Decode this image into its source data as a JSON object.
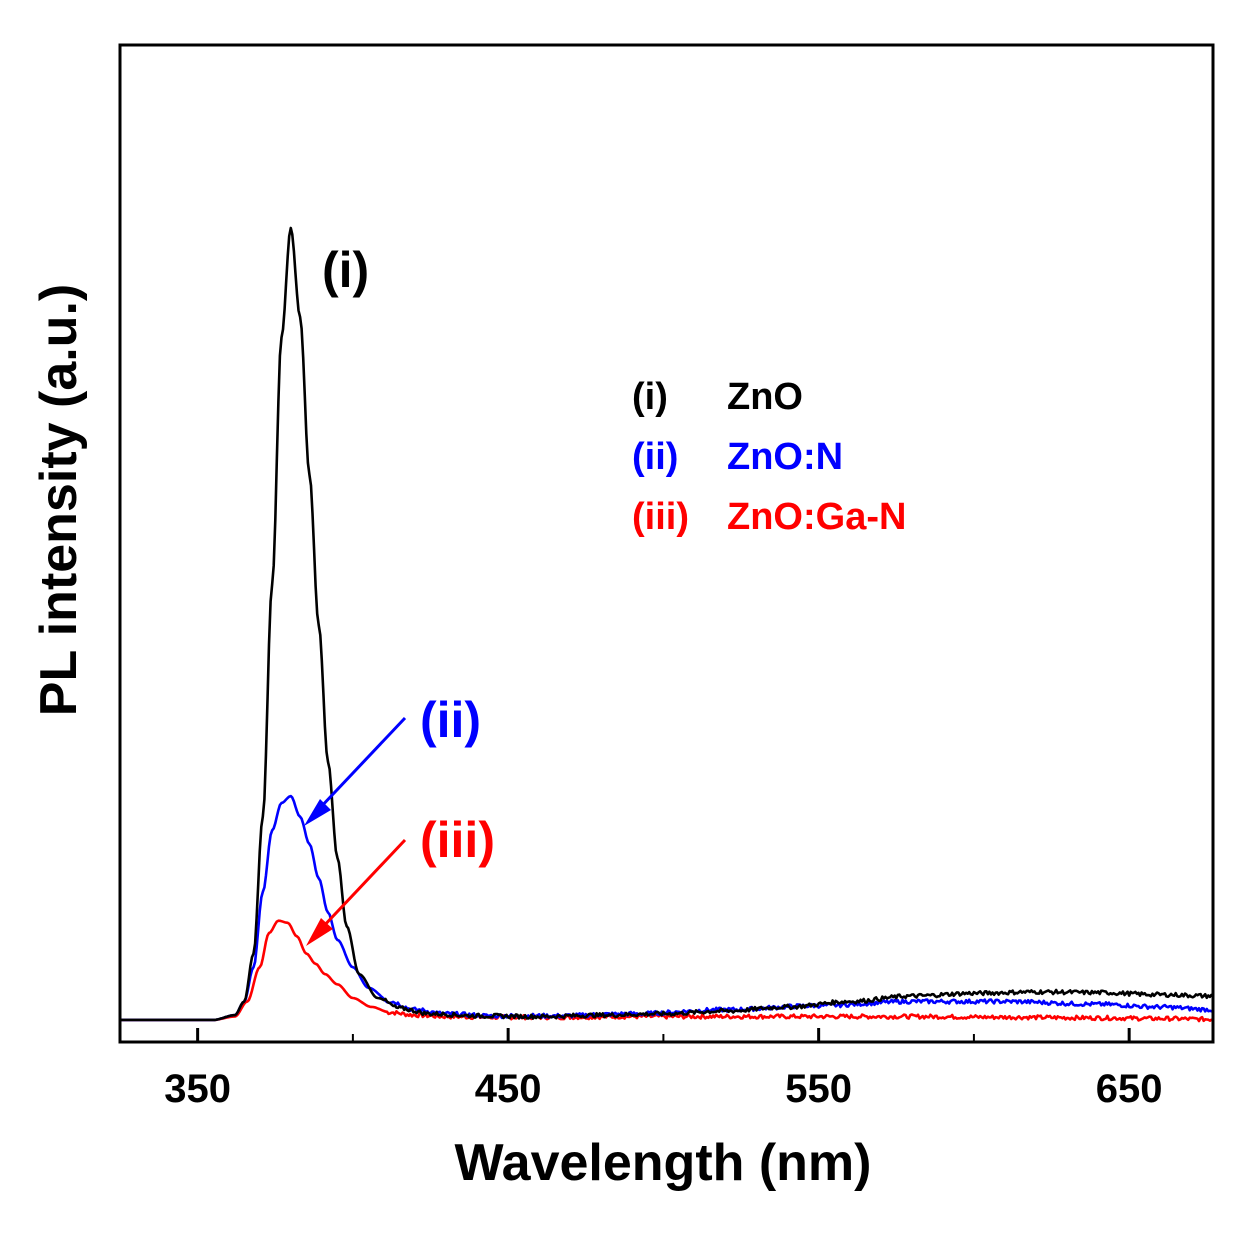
{
  "chart_data": {
    "type": "line",
    "xlabel": "Wavelength (nm)",
    "ylabel": "PL intensity (a.u.)",
    "xlim": [
      325,
      677
    ],
    "ylim": [
      0,
      1.25
    ],
    "xticks": [
      350,
      450,
      550,
      650
    ],
    "xtick_labels": [
      "350",
      "450",
      "550",
      "650"
    ],
    "yticks_shown": false,
    "grid": false,
    "legend": {
      "placement": "upper-right",
      "entries": [
        {
          "marker": "(i)",
          "label": "ZnO",
          "color": "#000000"
        },
        {
          "marker": "(ii)",
          "label": "ZnO:N",
          "color": "#0000ff"
        },
        {
          "marker": "(iii)",
          "label": "ZnO:Ga-N",
          "color": "#ff0000"
        }
      ]
    },
    "annotations": [
      {
        "text": "(i)",
        "color": "#000000",
        "series": 0
      },
      {
        "text": "(ii)",
        "color": "#0000ff",
        "series": 1,
        "arrow_to_x": 381
      },
      {
        "text": "(iii)",
        "color": "#ff0000",
        "series": 2,
        "arrow_to_x": 383
      }
    ],
    "series": [
      {
        "marker": "(i)",
        "color": "#000000",
        "x": [
          325,
          355,
          362,
          365,
          368,
          371,
          374,
          377,
          380,
          383,
          386,
          389,
          392,
          395,
          398,
          402,
          408,
          415,
          425,
          440,
          460,
          480,
          500,
          520,
          540,
          560,
          580,
          600,
          620,
          640,
          660,
          677
        ],
        "y": [
          0.003,
          0.003,
          0.01,
          0.03,
          0.1,
          0.3,
          0.64,
          1.0,
          1.16,
          1.03,
          0.8,
          0.58,
          0.38,
          0.24,
          0.14,
          0.07,
          0.035,
          0.02,
          0.012,
          0.009,
          0.008,
          0.01,
          0.012,
          0.016,
          0.022,
          0.03,
          0.038,
          0.042,
          0.044,
          0.043,
          0.04,
          0.038
        ]
      },
      {
        "marker": "(ii)",
        "color": "#0000ff",
        "x": [
          325,
          355,
          362,
          365,
          368,
          371,
          374,
          377,
          380,
          383,
          386,
          389,
          392,
          395,
          400,
          405,
          412,
          420,
          430,
          445,
          465,
          490,
          520,
          550,
          580,
          610,
          640,
          660,
          677
        ],
        "y": [
          0.003,
          0.003,
          0.01,
          0.03,
          0.08,
          0.19,
          0.28,
          0.32,
          0.33,
          0.3,
          0.26,
          0.21,
          0.16,
          0.12,
          0.08,
          0.05,
          0.03,
          0.018,
          0.012,
          0.009,
          0.009,
          0.012,
          0.018,
          0.024,
          0.03,
          0.03,
          0.026,
          0.022,
          0.018
        ]
      },
      {
        "marker": "(iii)",
        "color": "#ff0000",
        "x": [
          325,
          355,
          362,
          366,
          370,
          373,
          376,
          379,
          382,
          385,
          388,
          391,
          395,
          400,
          406,
          412,
          420,
          430,
          445,
          465,
          490,
          520,
          550,
          580,
          610,
          640,
          660,
          677
        ],
        "y": [
          0.003,
          0.003,
          0.008,
          0.03,
          0.08,
          0.13,
          0.148,
          0.145,
          0.125,
          0.1,
          0.085,
          0.07,
          0.055,
          0.035,
          0.022,
          0.014,
          0.01,
          0.008,
          0.007,
          0.007,
          0.008,
          0.008,
          0.008,
          0.008,
          0.007,
          0.006,
          0.005,
          0.004
        ]
      }
    ]
  }
}
